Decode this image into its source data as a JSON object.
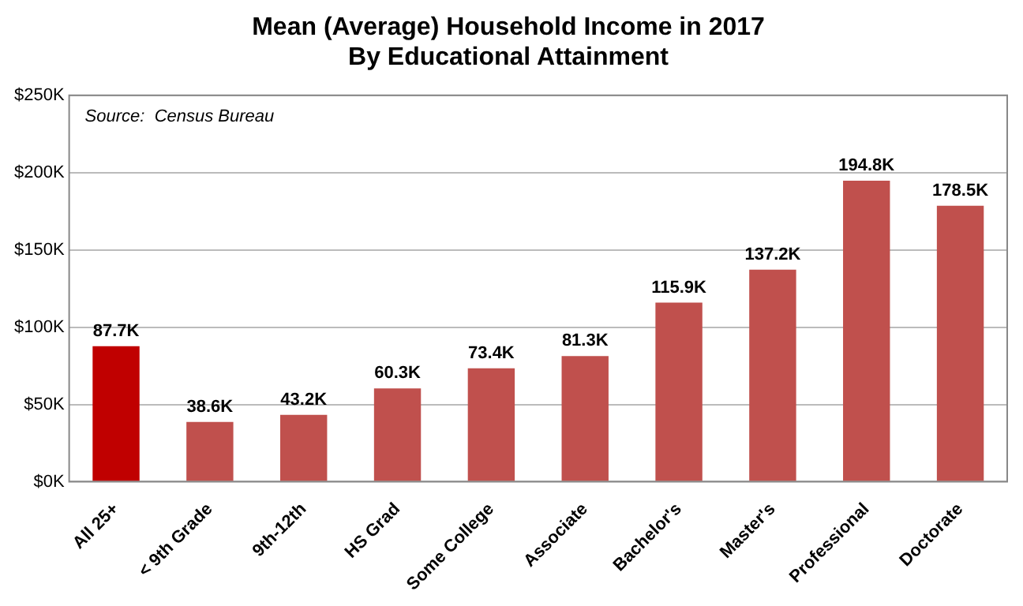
{
  "chart_data": {
    "type": "bar",
    "title": "Mean (Average) Household Income in 2017\nBy Educational Attainment",
    "categories": [
      "All 25+",
      "< 9th Grade",
      "9th-12th",
      "HS Grad",
      "Some College",
      "Associate",
      "Bachelor's",
      "Master's",
      "Professional",
      "Doctorate"
    ],
    "values": [
      87.7,
      38.6,
      43.2,
      60.3,
      73.4,
      81.3,
      115.9,
      137.2,
      194.8,
      178.5
    ],
    "colors": [
      "#c00000",
      "#c0504d",
      "#c0504d",
      "#c0504d",
      "#c0504d",
      "#c0504d",
      "#c0504d",
      "#c0504d",
      "#c0504d",
      "#c0504d"
    ],
    "value_labels": [
      "87.7K",
      "38.6K",
      "43.2K",
      "60.3K",
      "73.4K",
      "81.3K",
      "115.9K",
      "137.2K",
      "194.8K",
      "178.5K"
    ],
    "ylim": [
      0,
      250
    ],
    "yticks": [
      {
        "value": 0,
        "label": "$0K"
      },
      {
        "value": 50,
        "label": "$50K"
      },
      {
        "value": 100,
        "label": "$100K"
      },
      {
        "value": 150,
        "label": "$150K"
      },
      {
        "value": 200,
        "label": "$200K"
      },
      {
        "value": 250,
        "label": "$250K"
      }
    ],
    "grid": "y",
    "legend": false,
    "annotations": [
      "Source:  Census Bureau"
    ]
  }
}
